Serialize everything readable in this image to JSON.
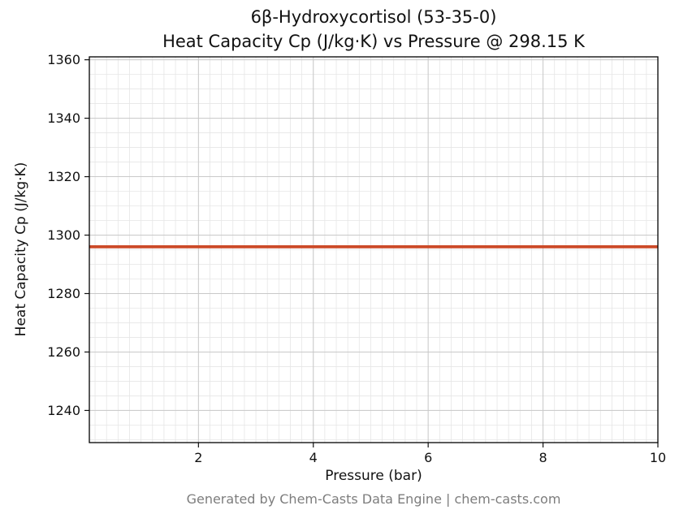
{
  "figure": {
    "title_line1": "6β-Hydroxycortisol (53-35-0)",
    "title_line2": "Heat Capacity Cp (J/kg·K) vs Pressure @ 298.15 K",
    "footer": "Generated by Chem-Casts Data Engine | chem-casts.com"
  },
  "chart_data": {
    "type": "line",
    "title": "6β-Hydroxycortisol (53-35-0) — Heat Capacity Cp (J/kg·K) vs Pressure @ 298.15 K",
    "xlabel": "Pressure (bar)",
    "ylabel": "Heat Capacity Cp (J/kg·K)",
    "xlim": [
      0.1,
      10.0
    ],
    "ylim": [
      1229.0,
      1361.0
    ],
    "xticks": [
      2,
      4,
      6,
      8,
      10
    ],
    "yticks": [
      1240,
      1260,
      1280,
      1300,
      1320,
      1340,
      1360
    ],
    "minor_x_step": 0.2,
    "minor_y_step": 5,
    "grid": true,
    "legend_position": "none",
    "axes_colors": {
      "border": "#000000",
      "major_grid": "#c9c9c9",
      "minor_grid": "#e6e6e6",
      "tick": "#111111"
    },
    "series": [
      {
        "name": "Heat Capacity Cp",
        "color": "#cc4a28",
        "line_width": 3.8,
        "x": [
          0.1,
          2.0,
          4.0,
          6.0,
          8.0,
          10.0
        ],
        "y": [
          1296.0,
          1296.0,
          1296.0,
          1296.0,
          1296.0,
          1296.0
        ]
      }
    ]
  }
}
